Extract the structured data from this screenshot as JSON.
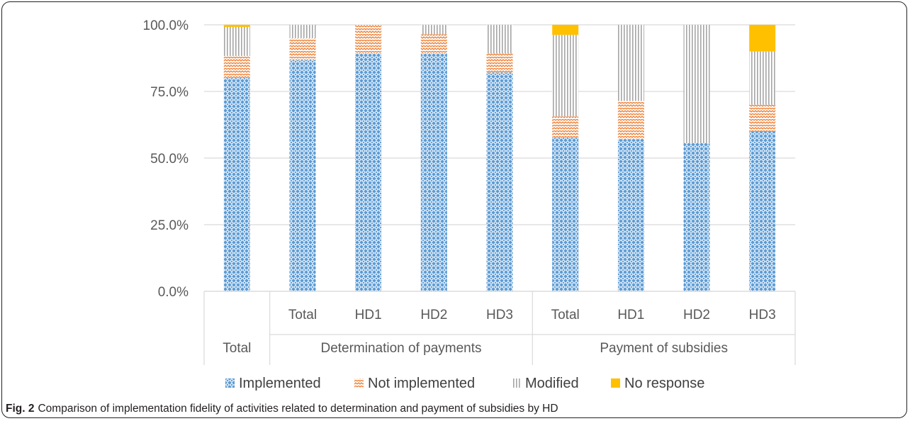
{
  "caption": {
    "label": "Fig. 2",
    "text": "Comparison of implementation fidelity of activities related to determination and payment of subsidies by HD"
  },
  "colors": {
    "Implemented": "#5b9bd5",
    "Not implemented": "#ed7d31",
    "Modified": "#a5a5a5",
    "No response": "#ffc000"
  },
  "chart_data": {
    "type": "bar",
    "stacked": true,
    "ylim": [
      0,
      100
    ],
    "yticks": [
      "0.0%",
      "25.0%",
      "50.0%",
      "75.0%",
      "100.0%"
    ],
    "grid": true,
    "legend": "bottom",
    "groups": [
      {
        "label": "Total",
        "categories": [
          ""
        ]
      },
      {
        "label": "Determination of payments",
        "categories": [
          "Total",
          "HD1",
          "HD2",
          "HD3"
        ]
      },
      {
        "label": "Payment of subsidies",
        "categories": [
          "Total",
          "HD1",
          "HD2",
          "HD3"
        ]
      }
    ],
    "series": [
      {
        "name": "Implemented",
        "pattern": "diamond",
        "values": [
          80,
          86.8,
          89.3,
          89.3,
          82.1,
          57.8,
          57.1,
          55.6,
          60
        ]
      },
      {
        "name": "Not implemented",
        "pattern": "zigzag",
        "values": [
          8.3,
          8.2,
          10.7,
          7.1,
          7.1,
          7.8,
          14.3,
          0,
          10
        ]
      },
      {
        "name": "Modified",
        "pattern": "vlines",
        "values": [
          10.9,
          5,
          0,
          3.6,
          10.8,
          30.6,
          28.6,
          44.4,
          20
        ]
      },
      {
        "name": "No response",
        "pattern": "solid",
        "values": [
          0.8,
          0,
          0,
          0,
          0,
          3.8,
          0,
          0,
          10
        ]
      }
    ]
  }
}
